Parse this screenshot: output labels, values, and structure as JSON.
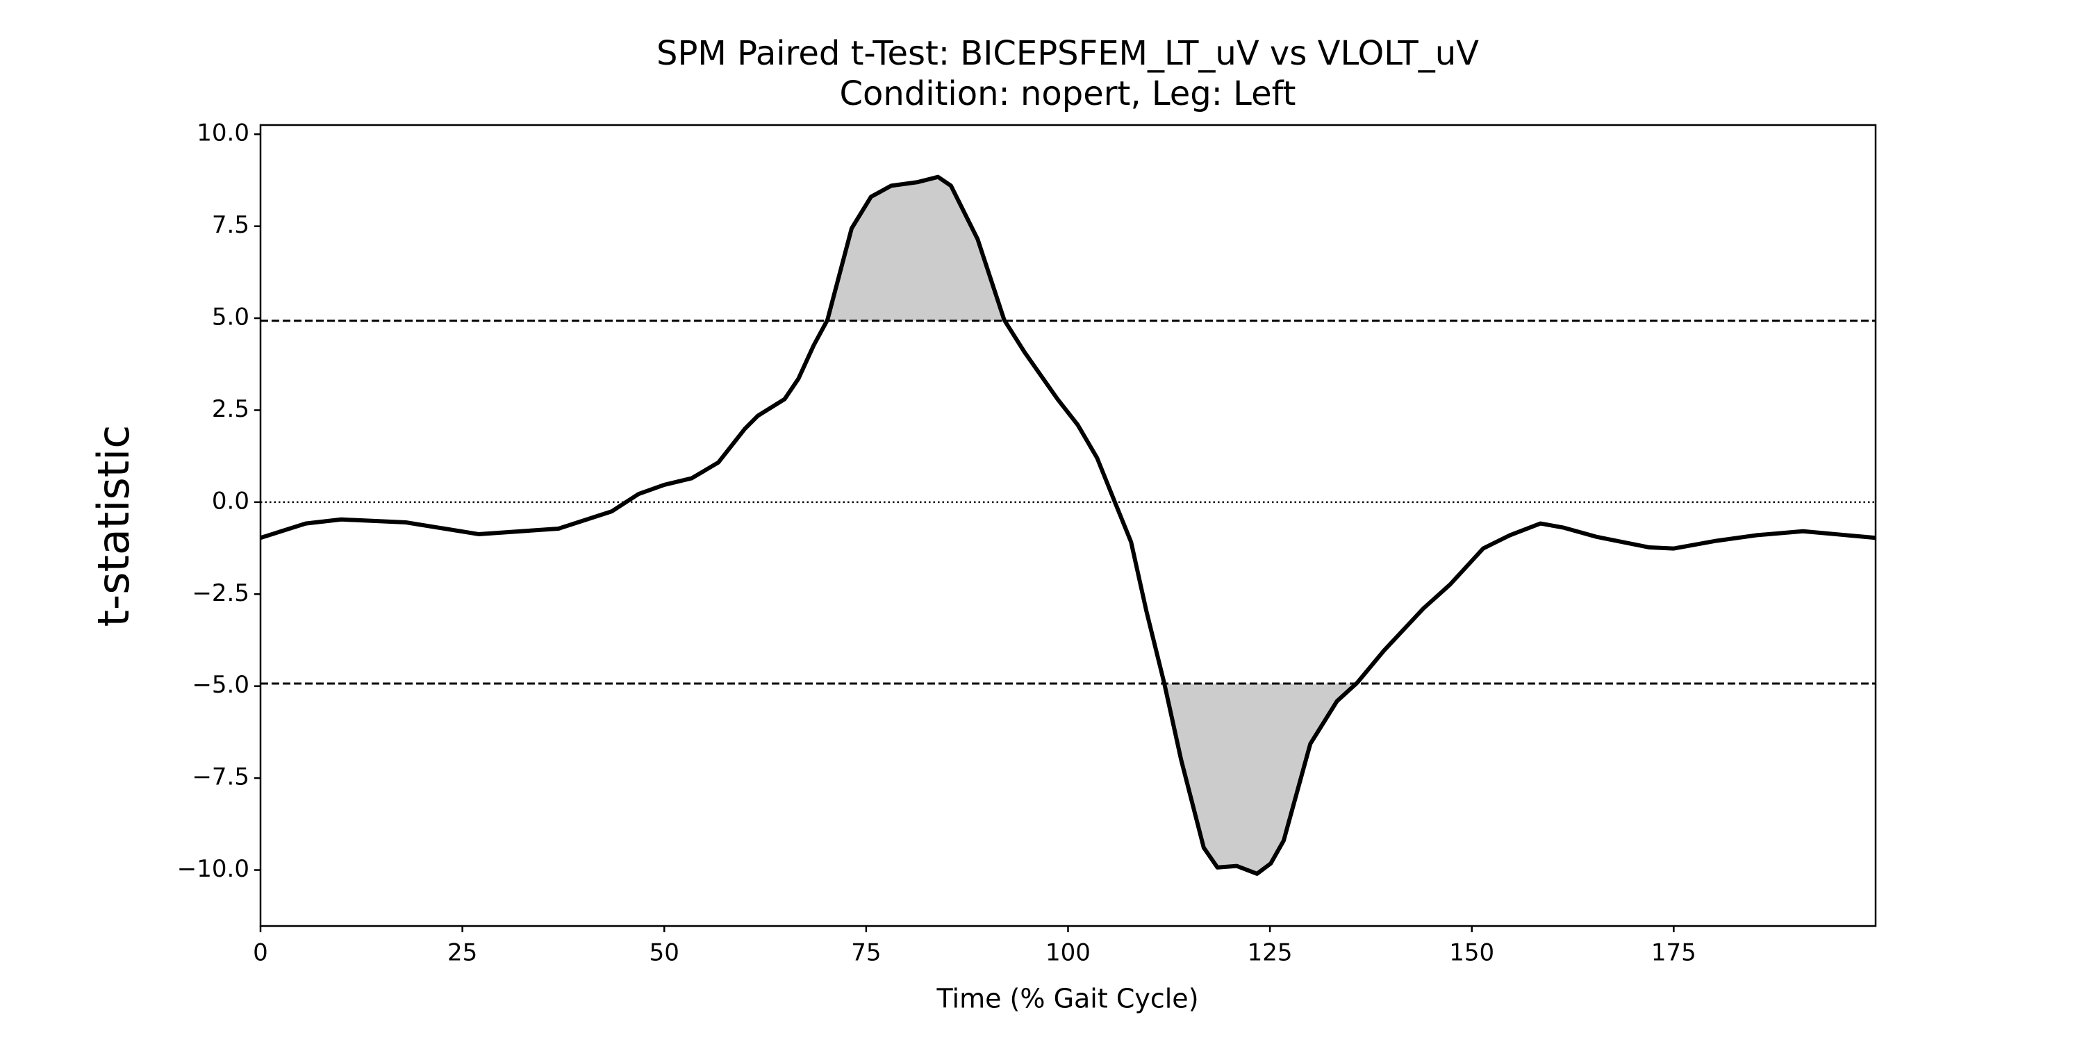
{
  "chart_data": {
    "type": "line",
    "title": "SPM Paired t-Test: BICEPSFEM_LT_uV vs VLOLT_uV",
    "subtitle": "Condition: nopert, Leg: Left",
    "xlabel": "Time (% Gait Cycle)",
    "ylabel": "t-statistic",
    "x": [
      0,
      5.6,
      10,
      18,
      27,
      36.9,
      43.5,
      46.8,
      50,
      53.4,
      56.7,
      60,
      61.6,
      64.9,
      66.6,
      68.5,
      70.2,
      73.2,
      75.6,
      78.1,
      81.4,
      83.9,
      85.5,
      88.8,
      92.1,
      94.6,
      98.7,
      101.2,
      103.6,
      105.8,
      107.8,
      109.7,
      111.9,
      114,
      116.8,
      118.5,
      120.9,
      123.4,
      125.1,
      126.7,
      130,
      133.3,
      135.8,
      139.1,
      144,
      147.3,
      151.4,
      154.7,
      158.5,
      161.3,
      165.4,
      172,
      175,
      180.3,
      185.2,
      191,
      195,
      200
    ],
    "values": [
      -0.97,
      -0.58,
      -0.47,
      -0.55,
      -0.87,
      -0.72,
      -0.25,
      0.22,
      0.47,
      0.65,
      1.08,
      2.0,
      2.35,
      2.8,
      3.35,
      4.26,
      4.95,
      7.44,
      8.3,
      8.6,
      8.7,
      8.84,
      8.6,
      7.15,
      4.95,
      4.08,
      2.8,
      2.1,
      1.2,
      0,
      -1.08,
      -2.96,
      -4.91,
      -7.0,
      -9.39,
      -9.93,
      -9.89,
      -10.1,
      -9.82,
      -9.2,
      -6.57,
      -5.41,
      -4.91,
      -4.04,
      -2.89,
      -2.24,
      -1.26,
      -0.9,
      -0.58,
      -0.69,
      -0.94,
      -1.23,
      -1.26,
      -1.05,
      -0.9,
      -0.79,
      -0.87,
      -0.97
    ],
    "color": "#000000",
    "fill_color": "#cccccc",
    "thresholds": [
      4.93,
      -4.93
    ],
    "reference_line": 0,
    "xlim": [
      0,
      200
    ],
    "ylim": [
      -11.52,
      10.25
    ],
    "xticks": [
      0,
      25,
      50,
      75,
      100,
      125,
      150,
      175
    ],
    "yticks": [
      {
        "value": -10,
        "label": "−10.0"
      },
      {
        "value": -7.5,
        "label": "−7.5"
      },
      {
        "value": -5,
        "label": "−5.0"
      },
      {
        "value": -2.5,
        "label": "−2.5"
      },
      {
        "value": 0,
        "label": "0.0"
      },
      2.5,
      {
        "value": 5,
        "label": "5.0"
      },
      7.5,
      {
        "value": 10,
        "label": "10.0"
      }
    ]
  }
}
